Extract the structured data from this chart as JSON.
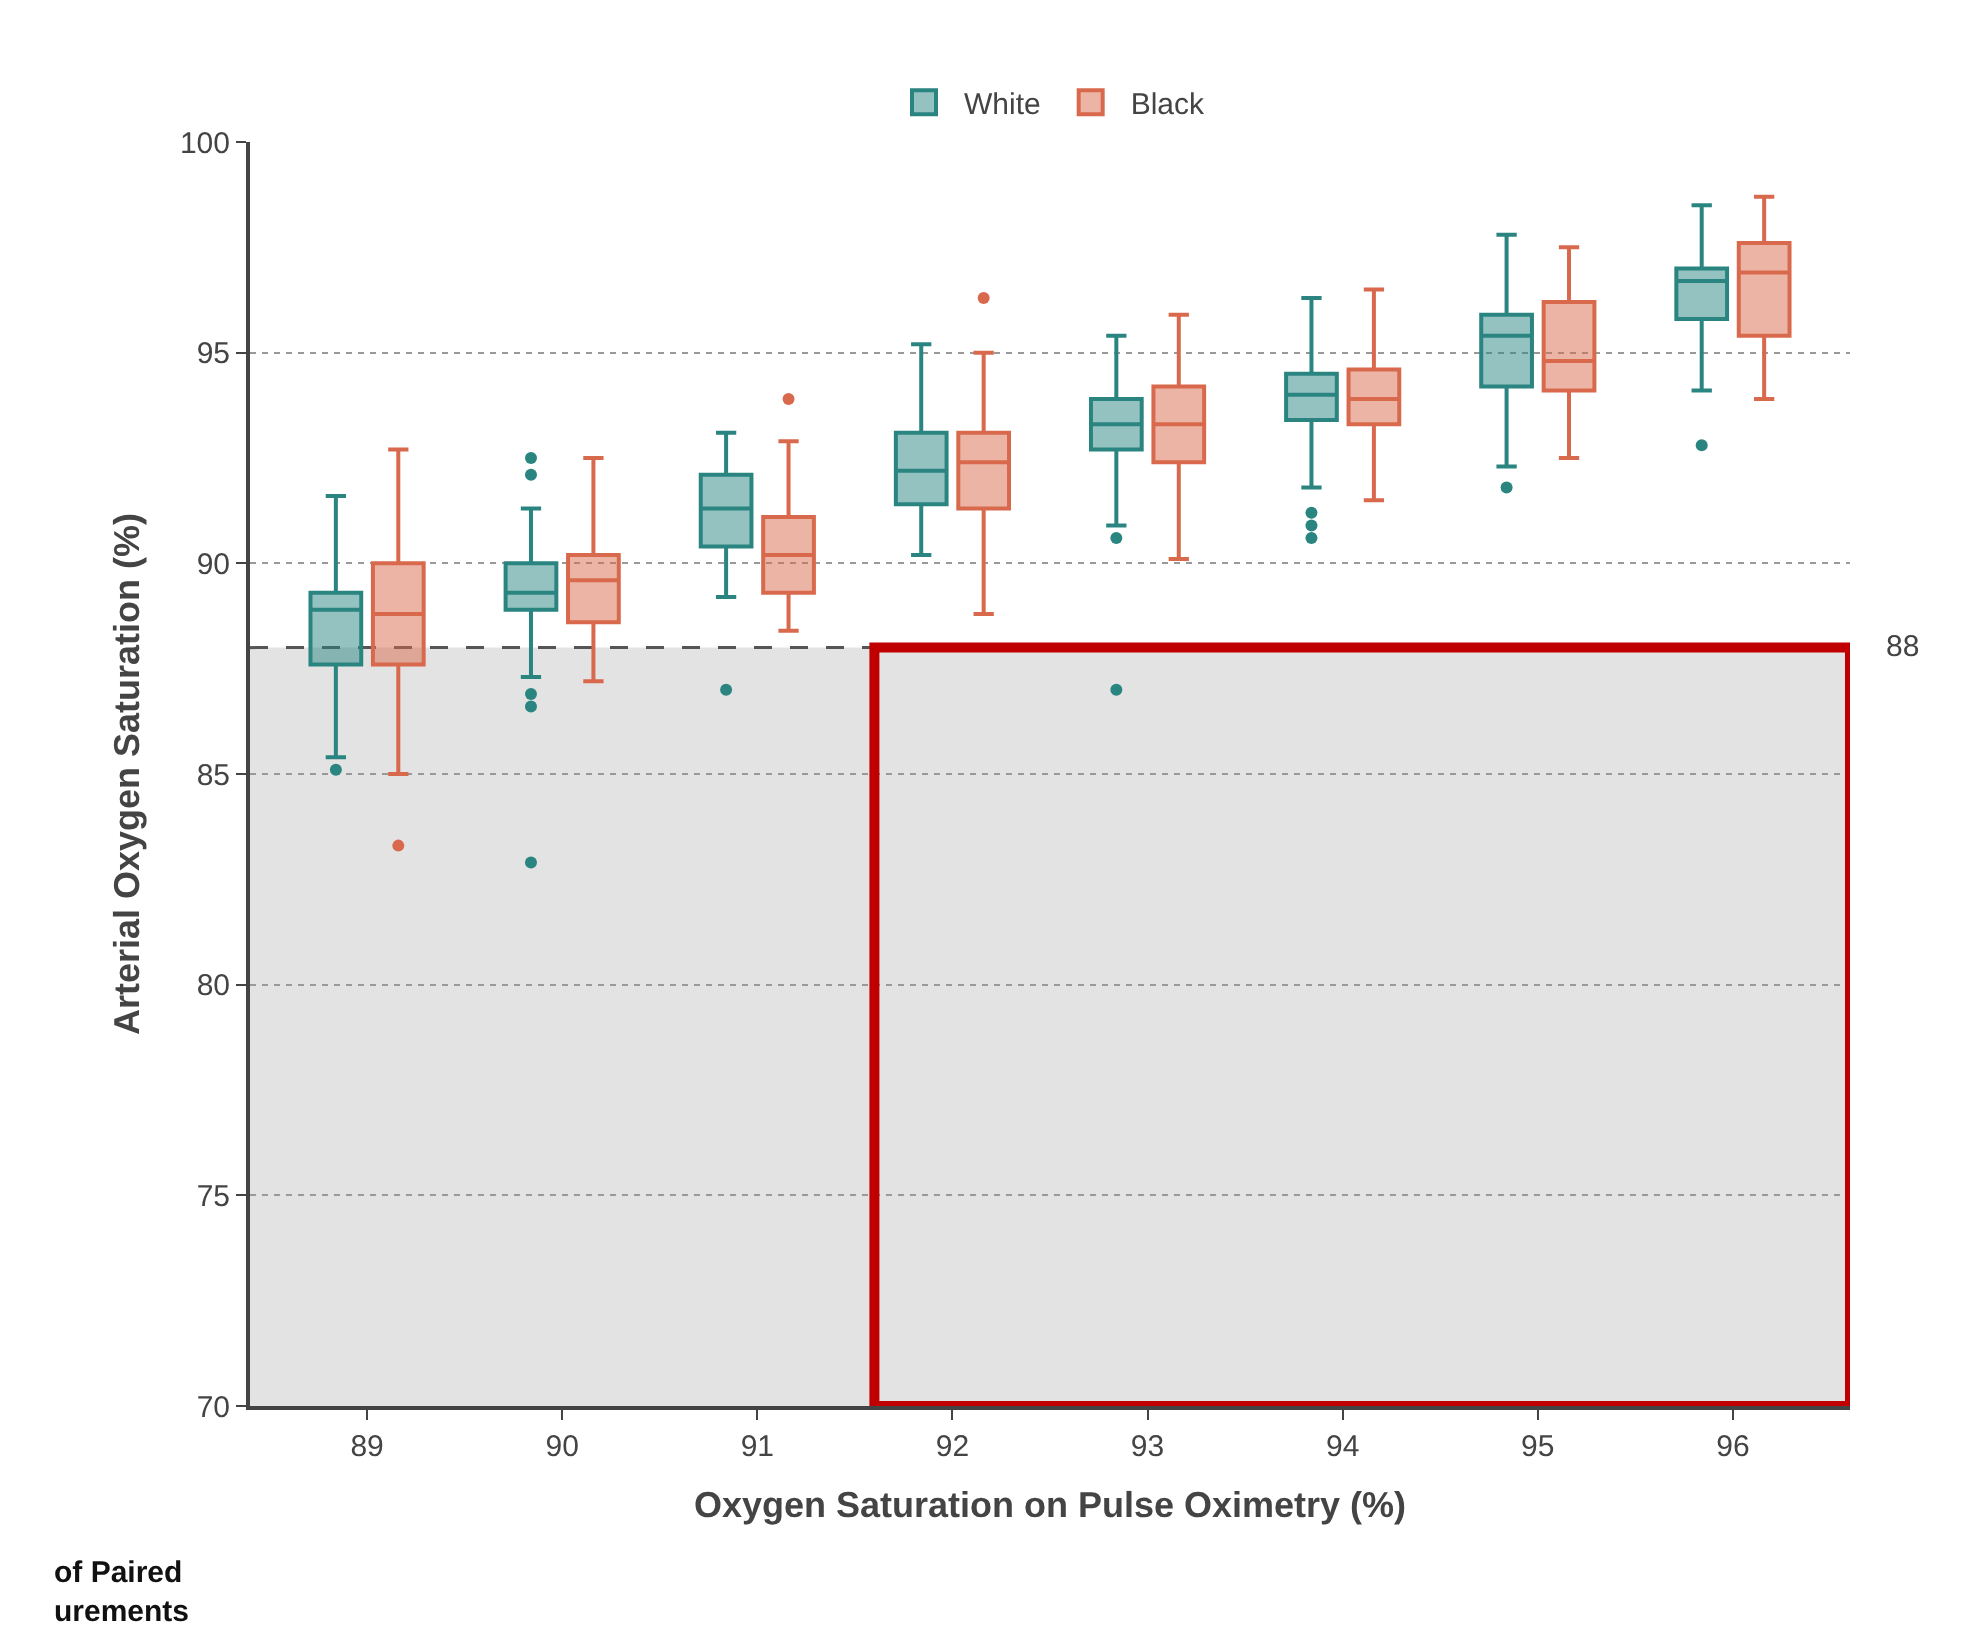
{
  "chart_data": {
    "type": "box",
    "categories": [
      "89",
      "90",
      "91",
      "92",
      "93",
      "94",
      "95",
      "96"
    ],
    "series": [
      {
        "name": "White",
        "color": "#2a8581",
        "boxes": [
          {
            "low": 85.4,
            "q1": 87.6,
            "median": 88.9,
            "q3": 89.3,
            "high": 91.6,
            "outliers": [
              85.1
            ]
          },
          {
            "low": 87.3,
            "q1": 88.9,
            "median": 89.3,
            "q3": 90.0,
            "high": 91.3,
            "outliers": [
              92.5,
              92.1,
              86.9,
              86.6,
              82.9
            ]
          },
          {
            "low": 89.2,
            "q1": 90.4,
            "median": 91.3,
            "q3": 92.1,
            "high": 93.1,
            "outliers": [
              87.0
            ]
          },
          {
            "low": 90.2,
            "q1": 91.4,
            "median": 92.2,
            "q3": 93.1,
            "high": 95.2
          },
          {
            "low": 90.9,
            "q1": 92.7,
            "median": 93.3,
            "q3": 93.9,
            "high": 95.4,
            "outliers": [
              90.6,
              87.0
            ]
          },
          {
            "low": 91.8,
            "q1": 93.4,
            "median": 94.0,
            "q3": 94.5,
            "high": 96.3,
            "outliers": [
              91.2,
              90.9,
              90.6
            ]
          },
          {
            "low": 92.3,
            "q1": 94.2,
            "median": 95.4,
            "q3": 95.9,
            "high": 97.8,
            "outliers": [
              91.8
            ]
          },
          {
            "low": 94.1,
            "q1": 95.8,
            "median": 96.7,
            "q3": 97.0,
            "high": 98.5,
            "outliers": [
              92.8
            ]
          }
        ]
      },
      {
        "name": "Black",
        "color": "#d9694c",
        "boxes": [
          {
            "low": 85.0,
            "q1": 87.6,
            "median": 88.8,
            "q3": 90.0,
            "high": 92.7,
            "outliers": [
              83.3
            ]
          },
          {
            "low": 87.2,
            "q1": 88.6,
            "median": 89.6,
            "q3": 90.2,
            "high": 92.5
          },
          {
            "low": 88.4,
            "q1": 89.3,
            "median": 90.2,
            "q3": 91.1,
            "high": 92.9,
            "outliers": [
              93.9
            ]
          },
          {
            "low": 88.8,
            "q1": 91.3,
            "median": 92.4,
            "q3": 93.1,
            "high": 95.0,
            "outliers": [
              96.3
            ]
          },
          {
            "low": 90.1,
            "q1": 92.4,
            "median": 93.3,
            "q3": 94.2,
            "high": 95.9
          },
          {
            "low": 91.5,
            "q1": 93.3,
            "median": 93.9,
            "q3": 94.6,
            "high": 96.5
          },
          {
            "low": 92.5,
            "q1": 94.1,
            "median": 94.8,
            "q3": 96.2,
            "high": 97.5
          },
          {
            "low": 93.9,
            "q1": 95.4,
            "median": 96.9,
            "q3": 97.6,
            "high": 98.7
          }
        ]
      }
    ],
    "xlabel": "Oxygen Saturation on Pulse Oximetry (%)",
    "ylabel": "Arterial Oxygen Saturation (%)",
    "ylim": [
      70,
      100
    ],
    "yticks": [
      70,
      75,
      80,
      85,
      90,
      95,
      100
    ],
    "grid": "y",
    "legend": "top",
    "marker": "circle",
    "ref_lines": [
      {
        "axis": "y",
        "value": 88,
        "label": "88",
        "line_style": "dashed",
        "color": "#555555"
      }
    ],
    "bands": [
      {
        "axis": "y",
        "from": 70,
        "to": 88,
        "color": "#e3e3e3"
      }
    ],
    "annotations": [
      "of Paired\nurements"
    ]
  }
}
